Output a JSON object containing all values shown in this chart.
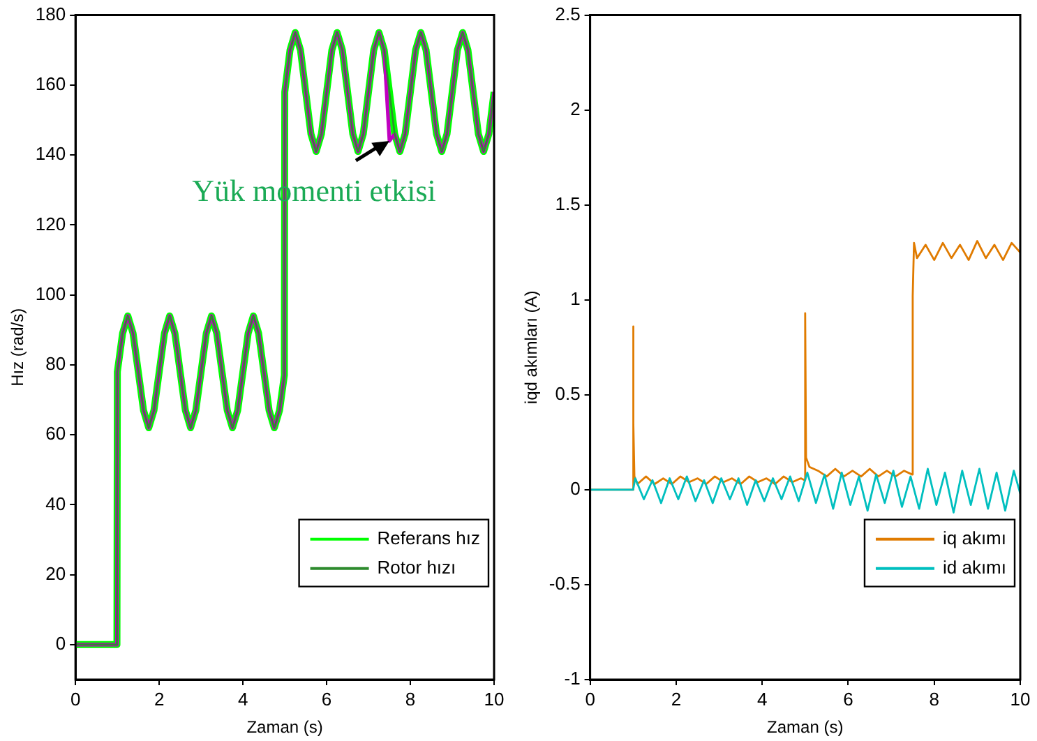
{
  "chart_data": [
    {
      "type": "line",
      "xlabel": "Zaman (s)",
      "ylabel": "Hız (rad/s)",
      "xlim": [
        0,
        10
      ],
      "xticks": [
        0,
        2,
        4,
        6,
        8,
        10
      ],
      "ylim": [
        -10,
        180
      ],
      "yticks": [
        0,
        20,
        40,
        60,
        80,
        100,
        120,
        140,
        160,
        180
      ],
      "legend": "bottom right",
      "marker": "none",
      "line_style": "solid",
      "x": [
        0,
        0.99,
        1,
        1.125,
        1.25,
        1.375,
        1.5,
        1.625,
        1.75,
        1.875,
        2,
        2.125,
        2.25,
        2.375,
        2.5,
        2.625,
        2.75,
        2.875,
        3,
        3.125,
        3.25,
        3.375,
        3.5,
        3.625,
        3.75,
        3.875,
        4,
        4.125,
        4.25,
        4.375,
        4.5,
        4.625,
        4.75,
        4.875,
        4.99,
        5,
        5.125,
        5.25,
        5.375,
        5.5,
        5.625,
        5.75,
        5.875,
        6,
        6.125,
        6.25,
        6.375,
        6.5,
        6.625,
        6.75,
        6.875,
        7,
        7.125,
        7.25,
        7.375,
        7.5,
        7.625,
        7.75,
        7.875,
        8,
        8.125,
        8.25,
        8.375,
        8.5,
        8.625,
        8.75,
        8.875,
        9,
        9.125,
        9.25,
        9.375,
        9.5,
        9.625,
        9.75,
        9.875,
        10
      ],
      "annotations": [
        {
          "text": "Yük momenti etkisi",
          "x": 7.5,
          "y": 144
        }
      ],
      "series": [
        {
          "name": "Referans hız",
          "color": "#00ff00",
          "values": [
            0,
            0,
            78,
            89,
            94,
            89,
            78,
            67,
            62,
            67,
            78,
            89,
            94,
            89,
            78,
            67,
            62,
            67,
            78,
            89,
            94,
            89,
            78,
            67,
            62,
            67,
            78,
            89,
            94,
            89,
            78,
            67,
            62,
            67,
            77,
            158,
            170,
            175,
            170,
            158,
            146,
            141,
            146,
            158,
            170,
            175,
            170,
            158,
            146,
            141,
            146,
            158,
            170,
            175,
            170,
            158,
            146,
            141,
            146,
            158,
            170,
            175,
            170,
            158,
            146,
            141,
            146,
            158,
            170,
            175,
            170,
            158,
            146,
            141,
            146,
            158
          ]
        },
        {
          "name": "Rotor hızı",
          "color": "#2e8b2e",
          "values": [
            0,
            0,
            78,
            89,
            94,
            89,
            78,
            67,
            62,
            67,
            78,
            89,
            94,
            89,
            78,
            67,
            62,
            67,
            78,
            89,
            94,
            89,
            78,
            67,
            62,
            67,
            78,
            89,
            94,
            89,
            78,
            67,
            62,
            67,
            77,
            158,
            170,
            175,
            170,
            158,
            146,
            141,
            146,
            158,
            170,
            175,
            170,
            158,
            146,
            141,
            146,
            158,
            170,
            175,
            170,
            158,
            146,
            141,
            146,
            158,
            170,
            175,
            170,
            158,
            146,
            141,
            146,
            158,
            170,
            175,
            170,
            158,
            146,
            141,
            146,
            158
          ]
        },
        {
          "color": "#c000c0",
          "values": [
            0,
            0,
            78,
            89,
            94,
            89,
            78,
            67,
            62,
            67,
            78,
            89,
            94,
            89,
            78,
            67,
            62,
            67,
            78,
            89,
            94,
            89,
            78,
            67,
            62,
            67,
            78,
            89,
            94,
            89,
            78,
            67,
            62,
            67,
            77,
            158,
            170,
            175,
            170,
            158,
            146,
            141,
            146,
            158,
            170,
            175,
            170,
            158,
            146,
            141,
            146,
            158,
            170,
            175,
            170,
            144,
            146,
            141,
            146,
            158,
            170,
            175,
            170,
            158,
            146,
            141,
            146,
            158,
            170,
            175,
            170,
            158,
            146,
            141,
            146,
            158
          ]
        }
      ]
    },
    {
      "type": "line",
      "xlabel": "Zaman (s)",
      "ylabel": "iqd akımları (A)",
      "xlim": [
        0,
        10
      ],
      "xticks": [
        0,
        2,
        4,
        6,
        8,
        10
      ],
      "ylim": [
        -1,
        2.5
      ],
      "yticks": [
        -1,
        -0.5,
        0,
        0.5,
        1,
        1.5,
        2,
        2.5
      ],
      "legend": "bottom right",
      "marker": "none",
      "line_style": "solid",
      "series": [
        {
          "name": "iq akımı",
          "color": "#e07b00",
          "x": [
            0,
            0.99,
            1,
            1.01,
            1.03,
            1.1,
            1.3,
            1.5,
            1.7,
            1.9,
            2.1,
            2.3,
            2.5,
            2.7,
            2.9,
            3.1,
            3.3,
            3.5,
            3.7,
            3.9,
            4.1,
            4.3,
            4.5,
            4.7,
            4.9,
            4.99,
            5,
            5.02,
            5.1,
            5.3,
            5.5,
            5.7,
            5.9,
            6.1,
            6.3,
            6.5,
            6.7,
            6.9,
            7.1,
            7.3,
            7.49,
            7.5,
            7.53,
            7.6,
            7.8,
            8,
            8.2,
            8.4,
            8.6,
            8.8,
            9,
            9.2,
            9.4,
            9.6,
            9.8,
            10
          ],
          "values": [
            0,
            0,
            0.86,
            0.35,
            0.07,
            0.03,
            0.07,
            0.03,
            0.06,
            0.03,
            0.07,
            0.04,
            0.06,
            0.03,
            0.07,
            0.04,
            0.06,
            0.03,
            0.07,
            0.04,
            0.06,
            0.03,
            0.07,
            0.04,
            0.06,
            0.05,
            0.93,
            0.17,
            0.12,
            0.1,
            0.07,
            0.11,
            0.07,
            0.1,
            0.07,
            0.11,
            0.07,
            0.1,
            0.07,
            0.1,
            0.08,
            1.02,
            1.3,
            1.22,
            1.29,
            1.21,
            1.3,
            1.22,
            1.29,
            1.21,
            1.31,
            1.22,
            1.29,
            1.21,
            1.3,
            1.25
          ]
        },
        {
          "name": "id akımı",
          "color": "#00bfbf",
          "x": [
            0,
            1,
            1.05,
            1.25,
            1.45,
            1.65,
            1.85,
            2.05,
            2.25,
            2.45,
            2.65,
            2.85,
            3.05,
            3.25,
            3.45,
            3.65,
            3.85,
            4.05,
            4.25,
            4.45,
            4.65,
            4.85,
            5.05,
            5.25,
            5.45,
            5.65,
            5.85,
            6.05,
            6.25,
            6.45,
            6.65,
            6.85,
            7.05,
            7.25,
            7.45,
            7.65,
            7.85,
            8.05,
            8.25,
            8.45,
            8.65,
            8.85,
            9.05,
            9.25,
            9.45,
            9.65,
            9.85,
            10
          ],
          "values": [
            0,
            0,
            0.06,
            -0.05,
            0.05,
            -0.07,
            0.06,
            -0.05,
            0.07,
            -0.06,
            0.05,
            -0.07,
            0.06,
            -0.05,
            0.06,
            -0.08,
            0.05,
            -0.06,
            0.06,
            -0.05,
            0.07,
            -0.06,
            0.09,
            -0.07,
            0.08,
            -0.1,
            0.09,
            -0.08,
            0.07,
            -0.11,
            0.08,
            -0.07,
            0.1,
            -0.09,
            0.07,
            -0.1,
            0.11,
            -0.08,
            0.09,
            -0.12,
            0.1,
            -0.08,
            0.11,
            -0.1,
            0.09,
            -0.11,
            0.1,
            -0.02
          ]
        }
      ]
    }
  ]
}
